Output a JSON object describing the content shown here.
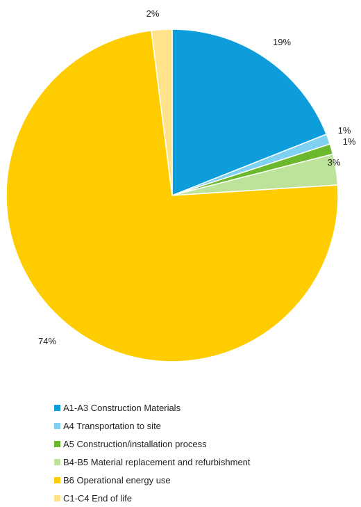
{
  "chart_data": {
    "type": "pie",
    "title": "",
    "legend_position": "bottom",
    "slices": [
      {
        "name": "A1-A3 Construction Materials",
        "value": 19,
        "label": "19%",
        "color": "#0d9ddb"
      },
      {
        "name": "A4 Transportation to site",
        "value": 1,
        "label": "1%",
        "color": "#7fd1f1"
      },
      {
        "name": "A5 Construction/installation process",
        "value": 1,
        "label": "1%",
        "color": "#6cb82c"
      },
      {
        "name": "B4-B5 Material replacement and refurbishment",
        "value": 3,
        "label": "3%",
        "color": "#bde39a"
      },
      {
        "name": "B6 Operational energy use",
        "value": 74,
        "label": "74%",
        "color": "#ffcc00"
      },
      {
        "name": "C1-C4 End of life",
        "value": 2,
        "label": "2%",
        "color": "#ffe38a"
      }
    ]
  }
}
